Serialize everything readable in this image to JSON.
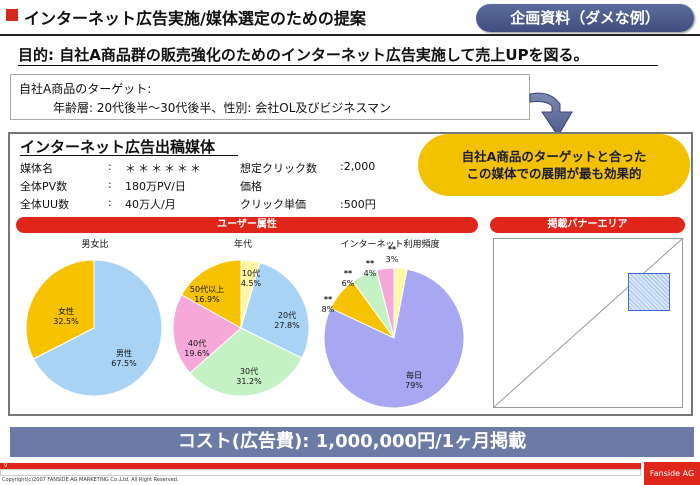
{
  "header": {
    "title": "インターネット広告実施/媒体選定のための提案",
    "badge": "企画資料（ダメな例）",
    "accent_color": "#d42a1e"
  },
  "purpose": "目的:  自社A商品群の販売強化のためのインターネット広告実施して売上UPを図る。",
  "target": {
    "line1": "自社A商品のターゲット:",
    "line2": "年齢層:  20代後半～30代後半、性別:  会社OL及びビジネスマン"
  },
  "media": {
    "title": "インターネット広告出稿媒体",
    "rows": [
      {
        "label": "媒体名",
        "colon": ":",
        "value": "＊＊＊＊＊＊"
      },
      {
        "label": "全体PV数",
        "colon": ":",
        "value": "180万PV/日"
      },
      {
        "label": "全体UU数",
        "colon": ":",
        "value": "40万人/月"
      }
    ],
    "right_rows": [
      {
        "label": "想定クリック数",
        "value": ":2,000"
      },
      {
        "label": "価格",
        "value": ""
      },
      {
        "label": "クリック単価",
        "value": ":500円"
      }
    ]
  },
  "callout": {
    "line1": "自社A商品のターゲットと合った",
    "line2": "この媒体での展開が最も効果的"
  },
  "sections": {
    "user_attr": "ユーザー属性",
    "banner_area": "掲載バナーエリア"
  },
  "chart_data": [
    {
      "type": "pie",
      "title": "男女比",
      "slices": [
        {
          "label": "男性",
          "pct_label": "67.5%",
          "value": 67.5,
          "color": "#a9d3f5"
        },
        {
          "label": "女性",
          "pct_label": "32.5%",
          "value": 32.5,
          "color": "#f7c200"
        }
      ]
    },
    {
      "type": "pie",
      "title": "年代",
      "slices": [
        {
          "label": "10代",
          "pct_label": "4.5%",
          "value": 4.5,
          "color": "#fff7a8"
        },
        {
          "label": "20代",
          "pct_label": "27.8%",
          "value": 27.8,
          "color": "#a9d3f5"
        },
        {
          "label": "30代",
          "pct_label": "31.2%",
          "value": 31.2,
          "color": "#c4f2c4"
        },
        {
          "label": "40代",
          "pct_label": "19.6%",
          "value": 19.6,
          "color": "#f6a8d8"
        },
        {
          "label": "50代以上",
          "pct_label": "16.9%",
          "value": 16.9,
          "color": "#f7c200"
        }
      ]
    },
    {
      "type": "pie",
      "title": "インターネット利用頻度",
      "slices": [
        {
          "label": "**",
          "pct_label": "3%",
          "value": 3,
          "color": "#fff7a8"
        },
        {
          "label": "毎日",
          "pct_label": "79%",
          "value": 79,
          "color": "#a7a7f2"
        },
        {
          "label": "**",
          "pct_label": "8%",
          "value": 8,
          "color": "#f7c200"
        },
        {
          "label": "**",
          "pct_label": "6%",
          "value": 6,
          "color": "#c4f2c4"
        },
        {
          "label": "**",
          "pct_label": "4%",
          "value": 4,
          "color": "#f6a8d8"
        }
      ]
    }
  ],
  "cost": "コスト(広告費):  1,000,000円/1ヶ月掲載",
  "footer": {
    "page": "9",
    "copyright": "Copyright(c)2007 FANSIDE AG MARKETING Co.,Ltd. All Right Reserved.",
    "logo": "Fanside AG"
  }
}
